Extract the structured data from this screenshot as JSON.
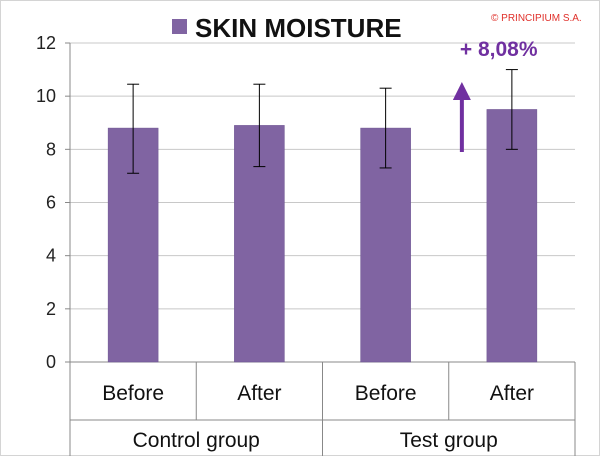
{
  "chart_data": {
    "type": "bar",
    "title": "SKIN MOISTURE",
    "legend": "SKIN MOISTURE",
    "categories": [
      "Before",
      "After",
      "Before",
      "After"
    ],
    "groups": [
      {
        "label": "Control group",
        "categories": [
          "Before",
          "After"
        ]
      },
      {
        "label": "Test group",
        "categories": [
          "Before",
          "After"
        ]
      }
    ],
    "series": [
      {
        "name": "SKIN MOISTURE",
        "values": [
          8.8,
          8.9,
          8.8,
          9.5
        ],
        "error_low": [
          7.1,
          7.35,
          7.3,
          8.0
        ],
        "error_high": [
          10.45,
          10.45,
          10.3,
          11.0
        ]
      }
    ],
    "ylim": [
      0,
      12
    ],
    "yticks": [
      0,
      2,
      4,
      6,
      8,
      10,
      12
    ],
    "xlabel": "",
    "ylabel": "",
    "grid": true,
    "legend_position": "top",
    "annotation": {
      "text": "+ 8,08%",
      "category_index": 3,
      "arrow": "up"
    }
  },
  "credit": "© PRINCIPIUM S.A.",
  "colors": {
    "bar": "#8064A2",
    "bar_edge": "#6B5290",
    "grid": "#C8C8C8",
    "axis": "#888888",
    "arrow": "#7030A0",
    "credit": "#E0302A"
  }
}
